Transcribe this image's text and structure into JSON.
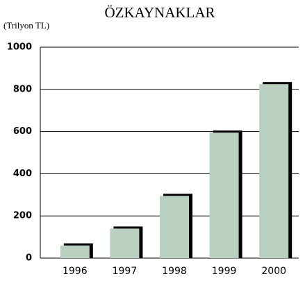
{
  "chart_data": {
    "type": "bar",
    "title": "ÖZKAYNAKLAR",
    "y_label": "(Trilyon TL)",
    "categories": [
      "1996",
      "1997",
      "1998",
      "1999",
      "2000"
    ],
    "values": [
      60,
      140,
      295,
      595,
      825
    ],
    "color": "#b9cfc0",
    "ylim": [
      0,
      1000
    ],
    "yticks": [
      0,
      200,
      400,
      600,
      800,
      1000
    ],
    "grid": true
  }
}
